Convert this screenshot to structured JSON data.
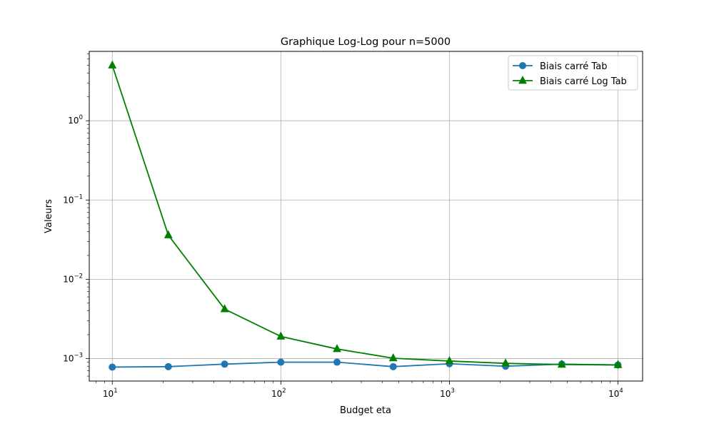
{
  "chart_data": {
    "type": "line",
    "title": "Graphique Log-Log pour n=5000",
    "xlabel": "Budget eta",
    "ylabel": "Valeurs",
    "xscale": "log",
    "yscale": "log",
    "xlim": [
      7.3,
      14000
    ],
    "ylim": [
      0.00052,
      7.5
    ],
    "grid": true,
    "legend_position": "top-right",
    "x_ticks": [
      {
        "base": "10",
        "exp": "1",
        "value": 10
      },
      {
        "base": "10",
        "exp": "2",
        "value": 100
      },
      {
        "base": "10",
        "exp": "3",
        "value": 1000
      },
      {
        "base": "10",
        "exp": "4",
        "value": 10000
      }
    ],
    "y_ticks": [
      {
        "base": "10",
        "exp": "0",
        "value": 1
      },
      {
        "base": "10",
        "exp": "−1",
        "value": 0.1
      },
      {
        "base": "10",
        "exp": "−2",
        "value": 0.01
      },
      {
        "base": "10",
        "exp": "−3",
        "value": 0.001
      }
    ],
    "x": [
      10,
      21.5,
      46.4,
      100,
      215.4,
      464.2,
      1000,
      2154.4,
      4641.6,
      10000
    ],
    "series": [
      {
        "name": "Biais carré Tab",
        "color": "#1f77b4",
        "marker": "circle",
        "values": [
          0.00078,
          0.00079,
          0.00085,
          0.0009,
          0.0009,
          0.00079,
          0.00086,
          0.0008,
          0.00085,
          0.00083
        ]
      },
      {
        "name": "Biais carré Log Tab",
        "color": "#008000",
        "marker": "triangle",
        "values": [
          5.0,
          0.036,
          0.0042,
          0.0019,
          0.00132,
          0.00101,
          0.00093,
          0.00087,
          0.00084,
          0.00083
        ]
      }
    ]
  }
}
